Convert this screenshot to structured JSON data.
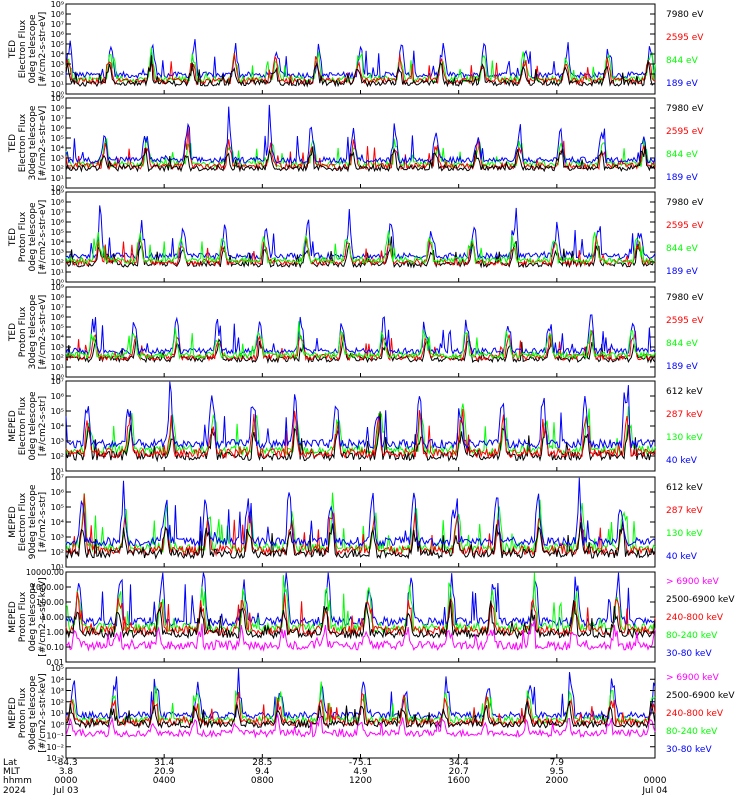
{
  "colors": {
    "blue": "#0000ff",
    "red": "#ff0000",
    "green": "#00ff00",
    "black": "#000000",
    "magenta": "#ff00ff"
  },
  "panels": [
    {
      "ylabel": [
        "TED",
        "Electron Flux",
        "0deg telescope",
        "[#/cm2-s-str-eV]"
      ],
      "yscale": "log",
      "ylim_exp": [
        0,
        9
      ],
      "tick_labels": [
        "10⁰",
        "10¹",
        "10²",
        "10³",
        "10⁴",
        "10⁵",
        "10⁶",
        "10⁷",
        "10⁸",
        "10⁹"
      ],
      "label_every": 1,
      "legend": [
        {
          "text": "7980 eV",
          "color": "#000000"
        },
        {
          "text": "2595 eV",
          "color": "#ff0000"
        },
        {
          "text": "844 eV",
          "color": "#00ff00"
        },
        {
          "text": "189 eV",
          "color": "#0000ff"
        }
      ],
      "baseline_exp": 1.3,
      "order": [
        "blue",
        "green",
        "red",
        "black"
      ]
    },
    {
      "ylabel": [
        "TED",
        "Electron Flux",
        "30deg telescope",
        "[#/cm2-s-str-eV]"
      ],
      "yscale": "log",
      "ylim_exp": [
        0,
        9
      ],
      "tick_labels": [
        "10⁰",
        "10¹",
        "10²",
        "10³",
        "10⁴",
        "10⁵",
        "10⁶",
        "10⁷",
        "10⁸",
        "10⁹"
      ],
      "label_every": 1,
      "legend": [
        {
          "text": "7980 eV",
          "color": "#000000"
        },
        {
          "text": "2595 eV",
          "color": "#ff0000"
        },
        {
          "text": "844 eV",
          "color": "#00ff00"
        },
        {
          "text": "189 eV",
          "color": "#0000ff"
        }
      ],
      "baseline_exp": 2.2,
      "order": [
        "green",
        "red",
        "blue",
        "black"
      ]
    },
    {
      "ylabel": [
        "TED",
        "Proton Flux",
        "0deg telescope",
        "[#/cm2-s-str-eV]"
      ],
      "yscale": "log",
      "ylim_exp": [
        0,
        9
      ],
      "tick_labels": [
        "10⁰",
        "10¹",
        "10²",
        "10³",
        "10⁴",
        "10⁵",
        "10⁶",
        "10⁷",
        "10⁸",
        "10⁹"
      ],
      "label_every": 1,
      "legend": [
        {
          "text": "7980 eV",
          "color": "#000000"
        },
        {
          "text": "2595 eV",
          "color": "#ff0000"
        },
        {
          "text": "844 eV",
          "color": "#00ff00"
        },
        {
          "text": "189 eV",
          "color": "#0000ff"
        }
      ],
      "baseline_exp": 2.0,
      "order": [
        "blue",
        "black",
        "red",
        "green"
      ]
    },
    {
      "ylabel": [
        "TED",
        "Proton Flux",
        "30deg telescope",
        "[#/cm2-s-str-eV]"
      ],
      "yscale": "log",
      "ylim_exp": [
        0,
        9
      ],
      "tick_labels": [
        "10⁰",
        "10¹",
        "10²",
        "10³",
        "10⁴",
        "10⁵",
        "10⁶",
        "10⁷",
        "10⁸",
        "10⁹"
      ],
      "label_every": 1,
      "legend": [
        {
          "text": "7980 eV",
          "color": "#000000"
        },
        {
          "text": "2595 eV",
          "color": "#ff0000"
        },
        {
          "text": "844 eV",
          "color": "#00ff00"
        },
        {
          "text": "189 eV",
          "color": "#0000ff"
        }
      ],
      "baseline_exp": 2.0,
      "order": [
        "black",
        "red",
        "blue",
        "green"
      ]
    },
    {
      "ylabel": [
        "MEPED",
        "Electron Flux",
        "0deg telescope",
        "[#/cm2-s-str]"
      ],
      "yscale": "log",
      "ylim_exp": [
        1,
        7
      ],
      "tick_labels": [
        "10¹",
        "10²",
        "10³",
        "10⁴",
        "10⁵",
        "10⁶",
        "10⁷"
      ],
      "label_every": 1,
      "legend": [
        {
          "text": "612 keV",
          "color": "#000000"
        },
        {
          "text": "287 keV",
          "color": "#ff0000"
        },
        {
          "text": "130 keV",
          "color": "#00ff00"
        },
        {
          "text": "40 keV",
          "color": "#0000ff"
        }
      ],
      "baseline_exp": 2.2,
      "order": [
        "green",
        "black",
        "red",
        "blue"
      ]
    },
    {
      "ylabel": [
        "MEPED",
        "Electron Flux",
        "90deg telescope",
        "[#/cm2-s-str]"
      ],
      "yscale": "log",
      "ylim_exp": [
        1,
        7
      ],
      "tick_labels": [
        "10¹",
        "10²",
        "10³",
        "10⁴",
        "10⁵",
        "10⁶",
        "10⁷"
      ],
      "label_every": 1,
      "legend": [
        {
          "text": "612 keV",
          "color": "#000000"
        },
        {
          "text": "287 keV",
          "color": "#ff0000"
        },
        {
          "text": "130 keV",
          "color": "#00ff00"
        },
        {
          "text": "40 keV",
          "color": "#0000ff"
        }
      ],
      "baseline_exp": 2.1,
      "order": [
        "green",
        "red",
        "black",
        "blue"
      ]
    },
    {
      "ylabel": [
        "MEPED",
        "Proton Flux",
        "0deg telescope",
        "[#/cm2-s-str-keV]"
      ],
      "yscale": "log",
      "ylim_exp": [
        -2,
        4
      ],
      "tick_labels": [
        "0.01",
        "0.10",
        "1.00",
        "10.00",
        "100.00",
        "1000.00",
        "10000.00"
      ],
      "label_every": 1,
      "legend": [
        {
          "text": "> 6900 keV",
          "color": "#ff00ff"
        },
        {
          "text": "2500-6900 keV",
          "color": "#000000"
        },
        {
          "text": "240-800 keV",
          "color": "#ff0000"
        },
        {
          "text": "80-240 keV",
          "color": "#00ff00"
        },
        {
          "text": "30-80 keV",
          "color": "#0000ff"
        }
      ],
      "baseline_exp": 0.1,
      "order": [
        "blue",
        "green",
        "red",
        "black",
        "magenta"
      ]
    },
    {
      "ylabel": [
        "MEPED",
        "Proton Flux",
        "90deg telescope",
        "[#/cm2-s-str-keV]"
      ],
      "yscale": "log",
      "ylim_exp": [
        -3,
        5
      ],
      "tick_labels": [
        "10⁻³",
        "10⁻²",
        "10⁻¹",
        "10⁰",
        "10¹",
        "10²",
        "10³",
        "10⁴",
        "10⁵"
      ],
      "label_every": 1,
      "legend": [
        {
          "text": "> 6900 keV",
          "color": "#ff00ff"
        },
        {
          "text": "2500-6900 keV",
          "color": "#000000"
        },
        {
          "text": "240-800 keV",
          "color": "#ff0000"
        },
        {
          "text": "80-240 keV",
          "color": "#00ff00"
        },
        {
          "text": "30-80 keV",
          "color": "#0000ff"
        }
      ],
      "baseline_exp": 0.2,
      "order": [
        "blue",
        "green",
        "red",
        "black",
        "magenta"
      ]
    }
  ],
  "xaxis": {
    "row_labels": [
      "Lat",
      "MLT",
      "hhmm",
      "2024"
    ],
    "columns": [
      {
        "lat": "-84.3",
        "mlt": "3.8",
        "hhmm": "0000",
        "date": "Jul 03"
      },
      {
        "lat": "31.4",
        "mlt": "20.9",
        "hhmm": "0400",
        "date": ""
      },
      {
        "lat": "28.5",
        "mlt": "9.4",
        "hhmm": "0800",
        "date": ""
      },
      {
        "lat": "-75.1",
        "mlt": "4.9",
        "hhmm": "1200",
        "date": ""
      },
      {
        "lat": "34.4",
        "mlt": "20.7",
        "hhmm": "1600",
        "date": ""
      },
      {
        "lat": "7.9",
        "mlt": "9.5",
        "hhmm": "2000",
        "date": ""
      },
      {
        "lat": "",
        "mlt": "",
        "hhmm": "0000",
        "date": "Jul 04"
      }
    ]
  },
  "chart_data": {
    "type": "line",
    "x_range_hhmm": [
      "0000 Jul 03",
      "0000 Jul 04"
    ],
    "x_ticks": [
      "0000",
      "0400",
      "0800",
      "1200",
      "1600",
      "2000",
      "0000"
    ],
    "panels": 8,
    "series_per_panel": [
      [
        "7980 eV",
        "2595 eV",
        "844 eV",
        "189 eV"
      ],
      [
        "7980 eV",
        "2595 eV",
        "844 eV",
        "189 eV"
      ],
      [
        "7980 eV",
        "2595 eV",
        "844 eV",
        "189 eV"
      ],
      [
        "7980 eV",
        "2595 eV",
        "844 eV",
        "189 eV"
      ],
      [
        "612 keV",
        "287 keV",
        "130 keV",
        "40 keV"
      ],
      [
        "612 keV",
        "287 keV",
        "130 keV",
        "40 keV"
      ],
      [
        "> 6900 keV",
        "2500-6900 keV",
        "240-800 keV",
        "80-240 keV",
        "30-80 keV"
      ],
      [
        "> 6900 keV",
        "2500-6900 keV",
        "240-800 keV",
        "80-240 keV",
        "30-80 keV"
      ]
    ],
    "yscale": "log"
  }
}
